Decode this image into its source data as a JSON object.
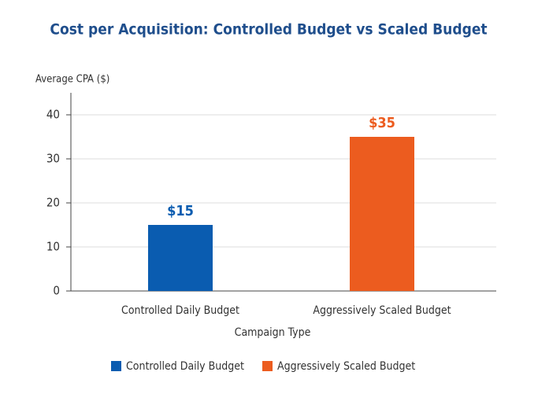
{
  "chart_data": {
    "type": "bar",
    "title": "Cost per Acquisition: Controlled Budget vs Scaled Budget",
    "y_label": "Average CPA ($)",
    "x_label": "Campaign Type",
    "categories": [
      "Controlled Daily Budget",
      "Aggressively Scaled Budget"
    ],
    "values": [
      15,
      35
    ],
    "value_labels": [
      "$15",
      "$35"
    ],
    "colors": [
      "#0a5cb0",
      "#ec5c1f"
    ],
    "ylim": [
      0,
      45
    ],
    "yticks": [
      0,
      10,
      20,
      30,
      40
    ],
    "grid": true,
    "legend": "bottom"
  }
}
